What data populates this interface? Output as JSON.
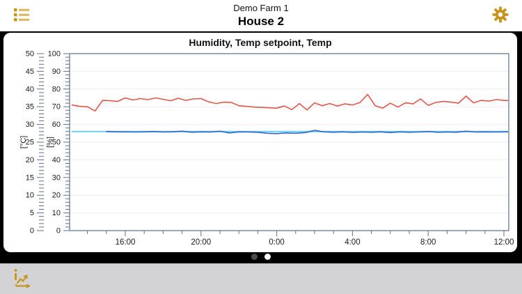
{
  "header": {
    "farm_name": "Demo Farm 1",
    "house_name": "House 2"
  },
  "colors": {
    "accent_gold": "#c9941a",
    "accent_gold_light": "#dcb860",
    "humidity_line": "#e2564a",
    "temp_line": "#2c66cb",
    "setpoint_line": "#74d3f2",
    "plot_border": "#5d6e90",
    "grid_line": "#e9edf3",
    "stage_background": "#000000",
    "toolbar_background": "#d3d3d5",
    "dot_inactive": "#4d4d4d",
    "dot_active": "#ffffff"
  },
  "pager": {
    "pages": 2,
    "active_index": 1
  },
  "chart_data": {
    "type": "line",
    "title": "Humidity, Temp setpoint, Temp",
    "grid": "horizontal-only",
    "legend": "none",
    "x_axis": {
      "unit": "time-of-day",
      "start_hour": 13.05,
      "end_hour": 36.3,
      "minor_tick_every_hours": 1,
      "major_ticks": [
        {
          "hour": 16,
          "label": "16:00"
        },
        {
          "hour": 20,
          "label": "20:00"
        },
        {
          "hour": 24,
          "label": "0:00"
        },
        {
          "hour": 28,
          "label": "4:00"
        },
        {
          "hour": 32,
          "label": "8:00"
        },
        {
          "hour": 36,
          "label": "12:00"
        }
      ]
    },
    "y_axes": [
      {
        "id": "celsius",
        "label": "[°C]",
        "min": 0,
        "max": 50,
        "major_step": 5,
        "minor_step": 1,
        "tick_labels": [
          "0",
          "5",
          "10",
          "15",
          "20",
          "25",
          "30",
          "35",
          "40",
          "45",
          "50"
        ]
      },
      {
        "id": "percent",
        "label": "[%]",
        "min": 0,
        "max": 100,
        "major_step": 10,
        "minor_step": 2,
        "tick_labels": [
          "0",
          "10",
          "20",
          "30",
          "40",
          "50",
          "60",
          "70",
          "80",
          "90",
          "100"
        ]
      }
    ],
    "series": [
      {
        "name": "Temp setpoint",
        "axis": "celsius",
        "color": "#74d3f2",
        "width": 2.2,
        "x": [
          13.2,
          36.2
        ],
        "values": [
          28,
          28
        ]
      },
      {
        "name": "Humidity",
        "axis": "percent",
        "color": "#e2564a",
        "width": 1.6,
        "x": [
          13.2,
          13.6,
          14,
          14.4,
          14.8,
          15.2,
          15.6,
          16,
          16.4,
          16.8,
          17.2,
          17.6,
          18,
          18.4,
          18.8,
          19.2,
          19.6,
          20,
          20.4,
          20.8,
          21.2,
          21.6,
          22,
          22.4,
          22.8,
          23.2,
          23.6,
          24,
          24.4,
          24.8,
          25.2,
          25.6,
          26,
          26.4,
          26.8,
          27.2,
          27.6,
          28,
          28.4,
          28.8,
          29.2,
          29.6,
          30,
          30.4,
          30.8,
          31.2,
          31.6,
          32,
          32.4,
          32.8,
          33.2,
          33.6,
          34,
          34.4,
          34.8,
          35.2,
          35.6,
          36,
          36.2
        ],
        "values": [
          71,
          70.2,
          70,
          67.6,
          73.6,
          73.4,
          73,
          75,
          73.8,
          74.6,
          74,
          75,
          74.2,
          73.4,
          74.8,
          73.6,
          74.4,
          74.6,
          72.8,
          71.8,
          72.6,
          72.4,
          70.6,
          70.2,
          69.8,
          69.6,
          69.4,
          69.2,
          70.4,
          68.4,
          71.8,
          68.2,
          72.2,
          70.6,
          71.8,
          70.4,
          71.6,
          71,
          72.4,
          77,
          70.6,
          69.2,
          72,
          69.8,
          72.2,
          71.6,
          74.4,
          70.8,
          72.4,
          73,
          72.6,
          72,
          76,
          72.2,
          73.6,
          73.2,
          74,
          73.6,
          73.5
        ]
      },
      {
        "name": "Temp",
        "axis": "celsius",
        "color": "#2c66cb",
        "width": 1.6,
        "x": [
          15,
          15.5,
          16,
          16.5,
          17,
          17.5,
          18,
          18.5,
          19,
          19.5,
          20,
          20.5,
          21,
          21.5,
          22,
          22.5,
          23,
          23.5,
          24,
          24.5,
          25,
          25.5,
          26,
          26.5,
          27,
          27.5,
          28,
          28.5,
          29,
          29.5,
          30,
          30.5,
          31,
          31.5,
          32,
          32.5,
          33,
          33.5,
          34,
          34.5,
          35,
          35.5,
          36,
          36.2
        ],
        "values": [
          28,
          27.9,
          27.9,
          27.85,
          27.9,
          28,
          27.85,
          27.9,
          28.1,
          27.8,
          27.9,
          27.85,
          28.1,
          27.6,
          27.9,
          27.85,
          27.8,
          27.5,
          27.4,
          27.6,
          27.5,
          27.7,
          28.3,
          27.9,
          27.8,
          27.9,
          27.75,
          27.85,
          27.8,
          27.9,
          27.7,
          27.9,
          27.8,
          27.85,
          28,
          27.8,
          27.85,
          27.8,
          28.1,
          27.85,
          27.9,
          27.85,
          27.9,
          27.9
        ]
      }
    ]
  }
}
